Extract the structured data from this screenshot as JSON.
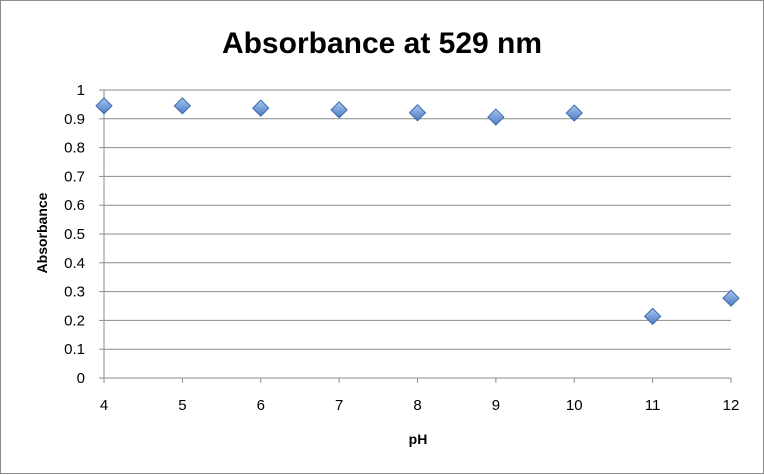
{
  "chart_data": {
    "type": "scatter",
    "title": "Absorbance at 529 nm",
    "xlabel": "pH",
    "ylabel": "Absorbance",
    "xlim": [
      4,
      12
    ],
    "ylim": [
      0,
      1
    ],
    "x_ticks": [
      "4",
      "5",
      "6",
      "7",
      "8",
      "9",
      "10",
      "11",
      "12"
    ],
    "y_ticks": [
      "0",
      "0.1",
      "0.2",
      "0.3",
      "0.4",
      "0.5",
      "0.6",
      "0.7",
      "0.8",
      "0.9",
      "1"
    ],
    "grid": "horizontal",
    "legend": "none",
    "marker": "diamond",
    "marker_color": "#5b8fd8",
    "series": [
      {
        "x": [
          4,
          5,
          6,
          7,
          8,
          9,
          10,
          11,
          12
        ],
        "y": [
          0.945,
          0.945,
          0.937,
          0.931,
          0.921,
          0.906,
          0.92,
          0.214,
          0.277
        ]
      }
    ]
  }
}
